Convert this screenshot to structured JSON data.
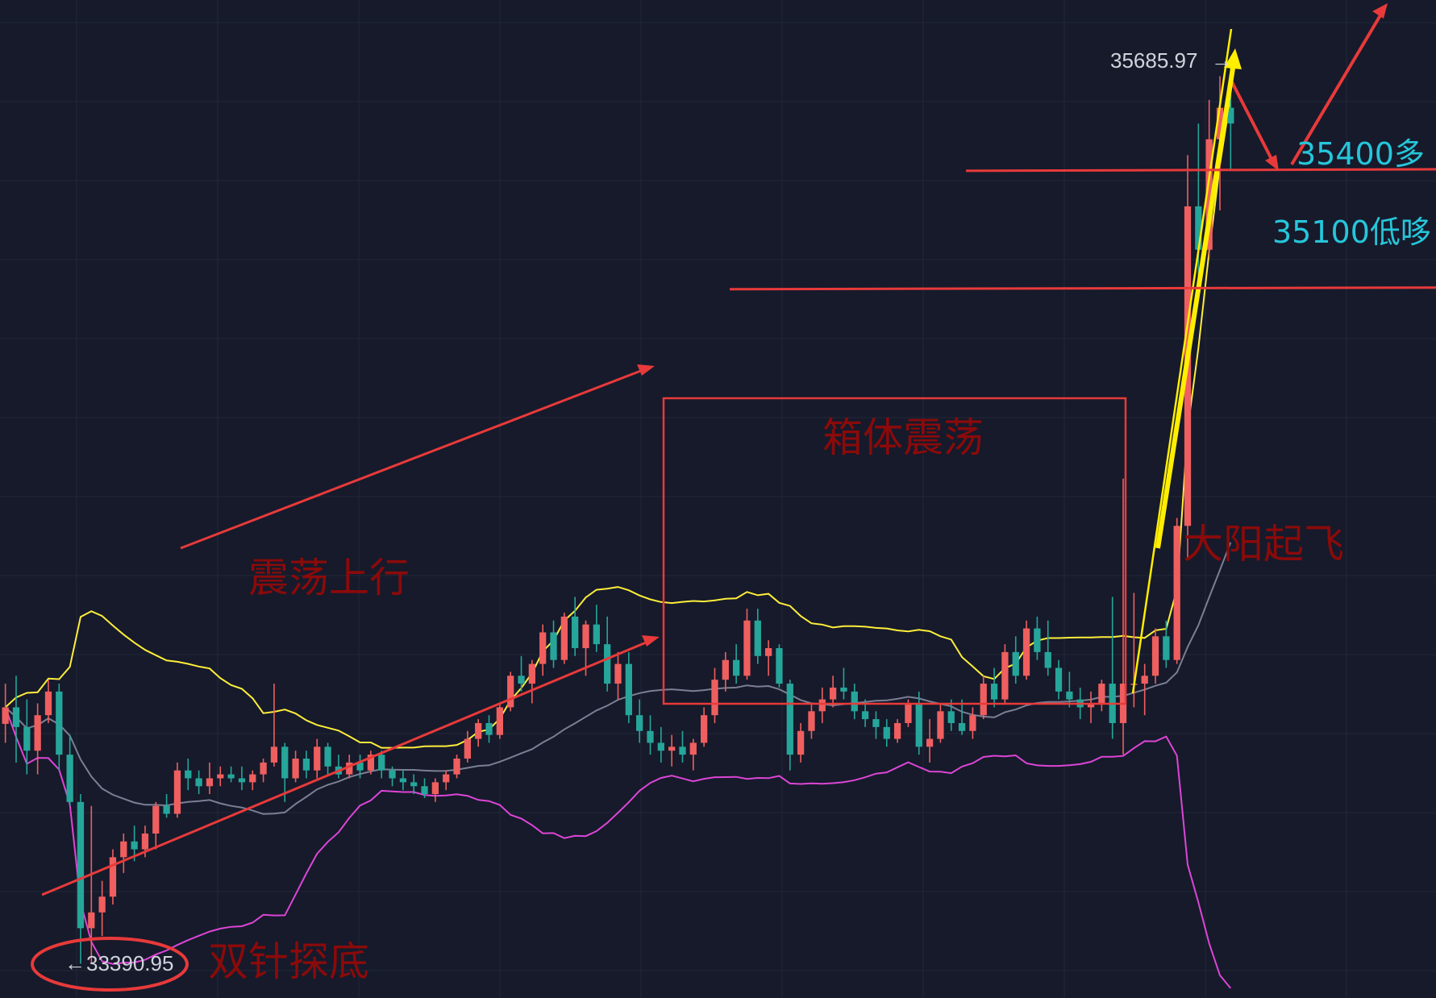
{
  "chart_data": {
    "type": "candlestick",
    "indicator": "Bollinger Bands",
    "high_label": "35685.97",
    "low_label": "33390.95",
    "annotations": [
      {
        "id": "rising-range",
        "text": "震荡上行",
        "color": "#8b0a0a"
      },
      {
        "id": "box-range",
        "text": "箱体震荡",
        "color": "#8b0a0a"
      },
      {
        "id": "big-candle-takeoff",
        "text": "大阳起飞",
        "color": "#8b0a0a"
      },
      {
        "id": "double-wick-bottom",
        "text": "双针探底",
        "color": "#8b0a0a"
      }
    ],
    "levels": [
      {
        "id": "long-level",
        "text": "35400多",
        "price": 35400,
        "color": "#26c6da"
      },
      {
        "id": "low-long-level",
        "text": "35100低哆",
        "price": 35100,
        "color": "#26c6da"
      }
    ],
    "colors": {
      "background": "#161a2b",
      "grid": "#232838",
      "up": "#ef5f5f",
      "down": "#26a69a",
      "bb_upper": "#ffee3a",
      "bb_middle": "#7b7f94",
      "bb_lower": "#dd45d6",
      "drawings": "#e83a3a",
      "trend": "#ffee00"
    },
    "candles": [
      [
        33998,
        34100,
        33950,
        34040
      ],
      [
        34040,
        34120,
        33900,
        33990
      ],
      [
        33990,
        34060,
        33870,
        33930
      ],
      [
        33930,
        34050,
        33870,
        34020
      ],
      [
        34020,
        34110,
        34000,
        34080
      ],
      [
        34080,
        34100,
        33880,
        33920
      ],
      [
        33920,
        33970,
        33790,
        33800
      ],
      [
        33800,
        33820,
        33390,
        33480
      ],
      [
        33480,
        33790,
        33390,
        33520
      ],
      [
        33520,
        33600,
        33460,
        33560
      ],
      [
        33560,
        33680,
        33540,
        33660
      ],
      [
        33660,
        33720,
        33620,
        33700
      ],
      [
        33700,
        33740,
        33650,
        33680
      ],
      [
        33680,
        33740,
        33660,
        33720
      ],
      [
        33720,
        33800,
        33680,
        33790
      ],
      [
        33790,
        33820,
        33760,
        33770
      ],
      [
        33770,
        33900,
        33760,
        33880
      ],
      [
        33880,
        33910,
        33830,
        33860
      ],
      [
        33860,
        33880,
        33820,
        33840
      ],
      [
        33840,
        33900,
        33820,
        33860
      ],
      [
        33860,
        33890,
        33840,
        33870
      ],
      [
        33870,
        33890,
        33850,
        33860
      ],
      [
        33860,
        33890,
        33830,
        33850
      ],
      [
        33850,
        33880,
        33830,
        33870
      ],
      [
        33870,
        33910,
        33850,
        33900
      ],
      [
        33900,
        34100,
        33890,
        33940
      ],
      [
        33940,
        33950,
        33800,
        33860
      ],
      [
        33860,
        33930,
        33850,
        33910
      ],
      [
        33910,
        33930,
        33860,
        33880
      ],
      [
        33880,
        33960,
        33860,
        33940
      ],
      [
        33940,
        33950,
        33870,
        33890
      ],
      [
        33890,
        33920,
        33860,
        33870
      ],
      [
        33870,
        33920,
        33860,
        33900
      ],
      [
        33900,
        33920,
        33860,
        33880
      ],
      [
        33880,
        33930,
        33870,
        33920
      ],
      [
        33920,
        33930,
        33860,
        33880
      ],
      [
        33880,
        33890,
        33840,
        33860
      ],
      [
        33860,
        33880,
        33830,
        33850
      ],
      [
        33850,
        33870,
        33820,
        33840
      ],
      [
        33840,
        33860,
        33810,
        33820
      ],
      [
        33820,
        33860,
        33800,
        33850
      ],
      [
        33850,
        33880,
        33830,
        33870
      ],
      [
        33870,
        33920,
        33860,
        33910
      ],
      [
        33910,
        33980,
        33900,
        33960
      ],
      [
        33960,
        34010,
        33940,
        34000
      ],
      [
        34000,
        34020,
        33950,
        33970
      ],
      [
        33970,
        34050,
        33960,
        34040
      ],
      [
        34040,
        34130,
        34030,
        34120
      ],
      [
        34120,
        34170,
        34080,
        34100
      ],
      [
        34100,
        34160,
        34050,
        34150
      ],
      [
        34150,
        34250,
        34120,
        34230
      ],
      [
        34230,
        34260,
        34140,
        34160
      ],
      [
        34160,
        34280,
        34150,
        34270
      ],
      [
        34270,
        34320,
        34170,
        34190
      ],
      [
        34190,
        34260,
        34120,
        34250
      ],
      [
        34250,
        34300,
        34180,
        34200
      ],
      [
        34200,
        34270,
        34080,
        34100
      ],
      [
        34100,
        34180,
        34060,
        34150
      ],
      [
        34150,
        34180,
        34000,
        34020
      ],
      [
        34020,
        34060,
        33950,
        33980
      ],
      [
        33980,
        34020,
        33920,
        33950
      ],
      [
        33950,
        33990,
        33900,
        33930
      ],
      [
        33930,
        33970,
        33890,
        33940
      ],
      [
        33940,
        33980,
        33900,
        33920
      ],
      [
        33920,
        33960,
        33880,
        33950
      ],
      [
        33950,
        34040,
        33940,
        34020
      ],
      [
        34020,
        34140,
        34000,
        34110
      ],
      [
        34110,
        34180,
        34080,
        34160
      ],
      [
        34160,
        34200,
        34100,
        34120
      ],
      [
        34120,
        34290,
        34110,
        34260
      ],
      [
        34260,
        34290,
        34150,
        34170
      ],
      [
        34170,
        34210,
        34120,
        34190
      ],
      [
        34190,
        34200,
        34090,
        34100
      ],
      [
        34100,
        34110,
        33880,
        33920
      ],
      [
        33920,
        34000,
        33900,
        33980
      ],
      [
        33980,
        34050,
        33960,
        34030
      ],
      [
        34030,
        34090,
        34000,
        34060
      ],
      [
        34060,
        34120,
        34040,
        34090
      ],
      [
        34090,
        34140,
        34060,
        34080
      ],
      [
        34080,
        34100,
        34010,
        34030
      ],
      [
        34030,
        34060,
        33990,
        34010
      ],
      [
        34010,
        34030,
        33960,
        33990
      ],
      [
        33990,
        34010,
        33940,
        33960
      ],
      [
        33960,
        34010,
        33950,
        34000
      ],
      [
        34000,
        34060,
        33990,
        34050
      ],
      [
        34050,
        34080,
        33920,
        33940
      ],
      [
        33940,
        34010,
        33900,
        33960
      ],
      [
        33960,
        34050,
        33950,
        34030
      ],
      [
        34030,
        34060,
        33980,
        34000
      ],
      [
        34000,
        34060,
        33970,
        33980
      ],
      [
        33980,
        34040,
        33960,
        34020
      ],
      [
        34020,
        34120,
        34010,
        34100
      ],
      [
        34100,
        34140,
        34040,
        34060
      ],
      [
        34060,
        34200,
        34050,
        34180
      ],
      [
        34180,
        34220,
        34100,
        34120
      ],
      [
        34120,
        34260,
        34110,
        34240
      ],
      [
        34240,
        34270,
        34160,
        34180
      ],
      [
        34180,
        34260,
        34120,
        34140
      ],
      [
        34140,
        34160,
        34060,
        34080
      ],
      [
        34080,
        34130,
        34040,
        34060
      ],
      [
        34060,
        34090,
        34010,
        34040
      ],
      [
        34040,
        34080,
        34000,
        34050
      ],
      [
        34050,
        34110,
        34030,
        34100
      ],
      [
        34100,
        34320,
        33960,
        34000
      ],
      [
        34000,
        34620,
        33920,
        34100
      ],
      [
        34100,
        34330,
        34040,
        34100
      ],
      [
        34100,
        34150,
        34020,
        34120
      ],
      [
        34120,
        34240,
        34100,
        34220
      ],
      [
        34220,
        34260,
        34140,
        34160
      ],
      [
        34160,
        34520,
        34150,
        34500
      ],
      [
        34500,
        35440,
        34420,
        35310
      ],
      [
        35310,
        35520,
        35100,
        35200
      ],
      [
        35200,
        35580,
        35180,
        35480
      ],
      [
        35480,
        35640,
        35300,
        35560
      ],
      [
        35560,
        35690,
        35400,
        35520
      ]
    ]
  }
}
